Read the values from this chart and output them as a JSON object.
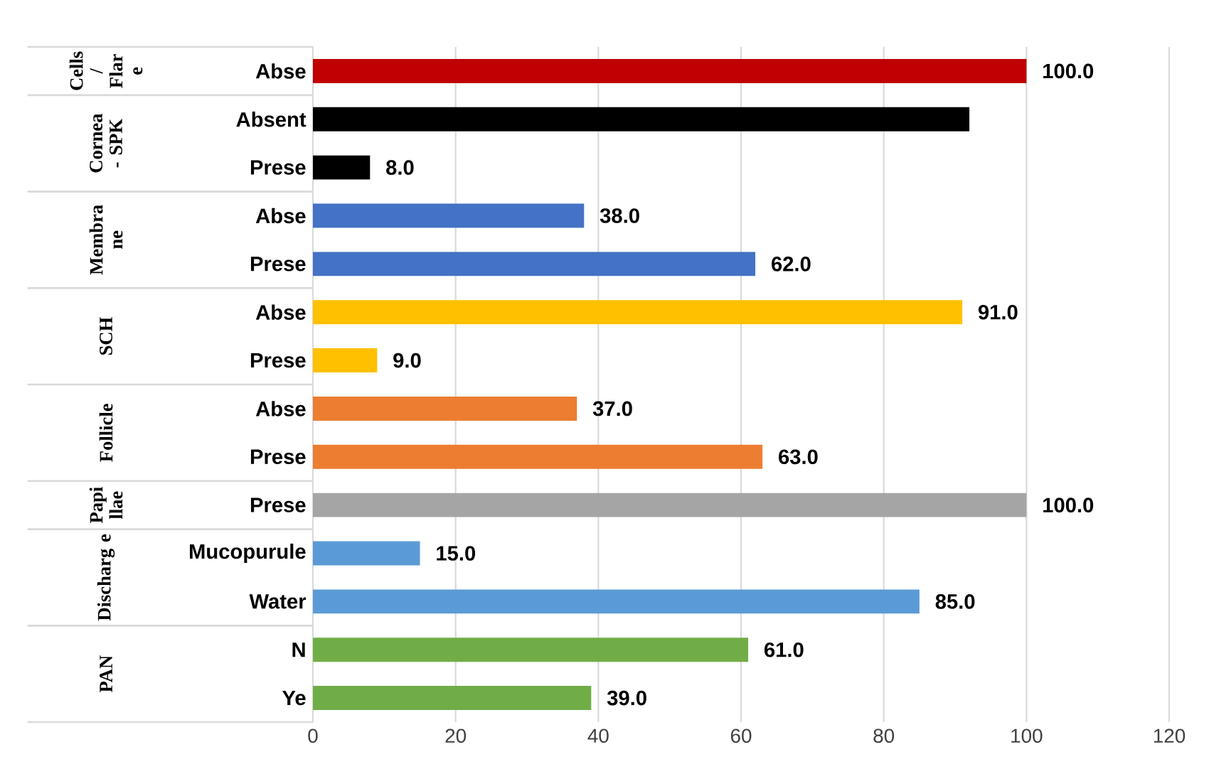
{
  "chart_data": {
    "type": "bar",
    "orientation": "horizontal",
    "categories": [
      "Abse",
      "Absent",
      "Prese",
      "Abse",
      "Prese",
      "Abse",
      "Prese",
      "Abse",
      "Prese",
      "Prese",
      "Mucopurule",
      "Water",
      "N",
      "Ye"
    ],
    "values": [
      100,
      92,
      8,
      38,
      62,
      91,
      9,
      37,
      63,
      100,
      15,
      85,
      61,
      39
    ],
    "colors": [
      "#c00000",
      "#000000",
      "#000000",
      "#4472c4",
      "#4472c4",
      "#ffc000",
      "#ffc000",
      "#ed7d31",
      "#ed7d31",
      "#a5a5a5",
      "#5b9bd5",
      "#5b9bd5",
      "#70ad47",
      "#70ad47"
    ],
    "value_labels": [
      "100.0",
      null,
      "8.0",
      "38.0",
      "62.0",
      "91.0",
      "9.0",
      "37.0",
      "63.0",
      "100.0",
      "15.0",
      "85.0",
      "61.0",
      "39.0"
    ],
    "xlim": [
      0,
      120
    ],
    "xticks": [
      0,
      20,
      40,
      60,
      80,
      100,
      120
    ],
    "grid": "x",
    "annotations": [
      "Cells / Flar e",
      "Cornea - SPK",
      "Membra ne",
      "SCH",
      "Follicle",
      "Papi llae",
      "Discharg e",
      "PAN"
    ]
  }
}
